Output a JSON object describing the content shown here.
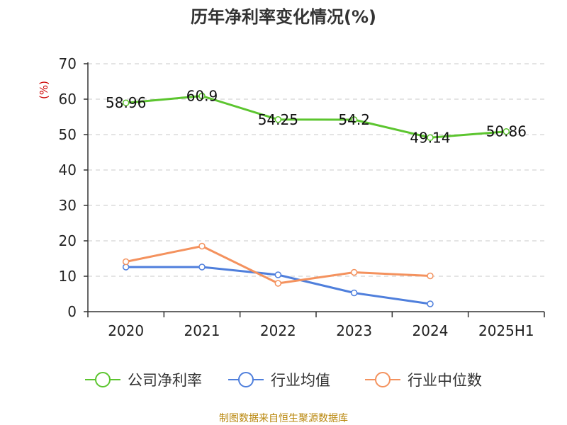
{
  "chart_data": {
    "type": "line",
    "title": "历年净利率变化情况(%)",
    "ylabel": "(%)",
    "xlabel": "",
    "categories": [
      "2020",
      "2021",
      "2022",
      "2023",
      "2024",
      "2025H1"
    ],
    "ylim": [
      0,
      70
    ],
    "yticks": [
      0,
      10,
      20,
      30,
      40,
      50,
      60,
      70
    ],
    "grid": true,
    "legend_position": "bottom",
    "series": [
      {
        "name": "公司净利率",
        "color": "#5cc52f",
        "values": [
          58.96,
          60.9,
          54.25,
          54.2,
          49.14,
          50.86
        ],
        "labels": [
          "58.96",
          "60.9",
          "54.25",
          "54.2",
          "49.14",
          "50.86"
        ]
      },
      {
        "name": "行业均值",
        "color": "#4f7fdc",
        "values": [
          12.6,
          12.6,
          10.4,
          5.3,
          2.2,
          null
        ]
      },
      {
        "name": "行业中位数",
        "color": "#f4925e",
        "values": [
          14.1,
          18.5,
          8.0,
          11.1,
          10.1,
          null
        ]
      }
    ],
    "source": "制图数据来自恒生聚源数据库"
  }
}
